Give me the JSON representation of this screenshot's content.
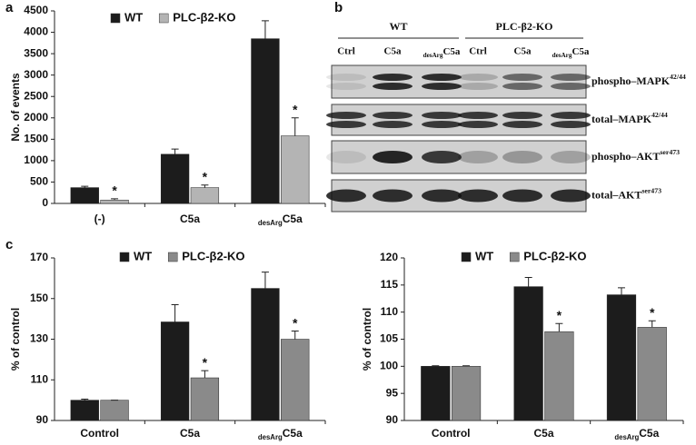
{
  "panel_labels": [
    "a",
    "b",
    "c"
  ],
  "chart_data": [
    {
      "type": "bar",
      "y_label": "No. of events",
      "categories": [
        "(-)",
        "C5a",
        [
          "desArg",
          "C5a"
        ]
      ],
      "series": [
        {
          "name": "WT",
          "color": "#1c1c1c",
          "values": [
            370,
            1150,
            3850
          ],
          "errors": [
            30,
            120,
            420
          ]
        },
        {
          "name": "PLC-β2-KO",
          "color": "#b4b4b4",
          "values": [
            80,
            370,
            1580
          ],
          "errors": [
            30,
            60,
            420
          ],
          "annotations": [
            "*",
            "*",
            "*"
          ]
        }
      ],
      "ylim": [
        0,
        4500
      ],
      "yticks": [
        0,
        500,
        1000,
        1500,
        2000,
        2500,
        3000,
        3500,
        4000,
        4500
      ]
    },
    {
      "type": "bar",
      "y_label": "% of control",
      "categories": [
        "Control",
        "C5a",
        [
          "desArg",
          "C5a"
        ]
      ],
      "series": [
        {
          "name": "WT",
          "color": "#1c1c1c",
          "values": [
            100,
            138.5,
            155
          ],
          "errors": [
            0.5,
            8.5,
            8
          ]
        },
        {
          "name": "PLC-β2-KO",
          "color": "#8a8a8a",
          "values": [
            100,
            111,
            130
          ],
          "errors": [
            0,
            3.5,
            4
          ],
          "annotations": [
            null,
            "*",
            "*"
          ]
        }
      ],
      "ylim": [
        90,
        170
      ],
      "yticks": [
        90,
        110,
        130,
        150,
        170
      ]
    },
    {
      "type": "bar",
      "y_label": "% of control",
      "categories": [
        "Control",
        "C5a",
        [
          "desArg",
          "C5a"
        ]
      ],
      "series": [
        {
          "name": "WT",
          "color": "#1c1c1c",
          "values": [
            100,
            114.7,
            113.2
          ],
          "errors": [
            0.1,
            1.7,
            1.3
          ]
        },
        {
          "name": "PLC-β2-KO",
          "color": "#8a8a8a",
          "values": [
            100,
            106.4,
            107.2
          ],
          "errors": [
            0.1,
            1.5,
            1.2
          ],
          "annotations": [
            null,
            "*",
            "*"
          ]
        }
      ],
      "ylim": [
        90,
        120
      ],
      "yticks": [
        90,
        95,
        100,
        105,
        110,
        115,
        120
      ]
    }
  ],
  "blot": {
    "groups": [
      "WT",
      "PLC-β2-KO"
    ],
    "lanes": [
      "Ctrl",
      "C5a",
      [
        "desArg",
        "C5a"
      ],
      "Ctrl",
      "C5a",
      [
        "desArg",
        "C5a"
      ]
    ],
    "rows": [
      [
        "phospho–MAPK",
        "42/44"
      ],
      [
        "total–MAPK",
        "42/44"
      ],
      [
        "phospho–AKT",
        "ser473"
      ],
      [
        "total–AKT",
        "ser473"
      ]
    ]
  }
}
